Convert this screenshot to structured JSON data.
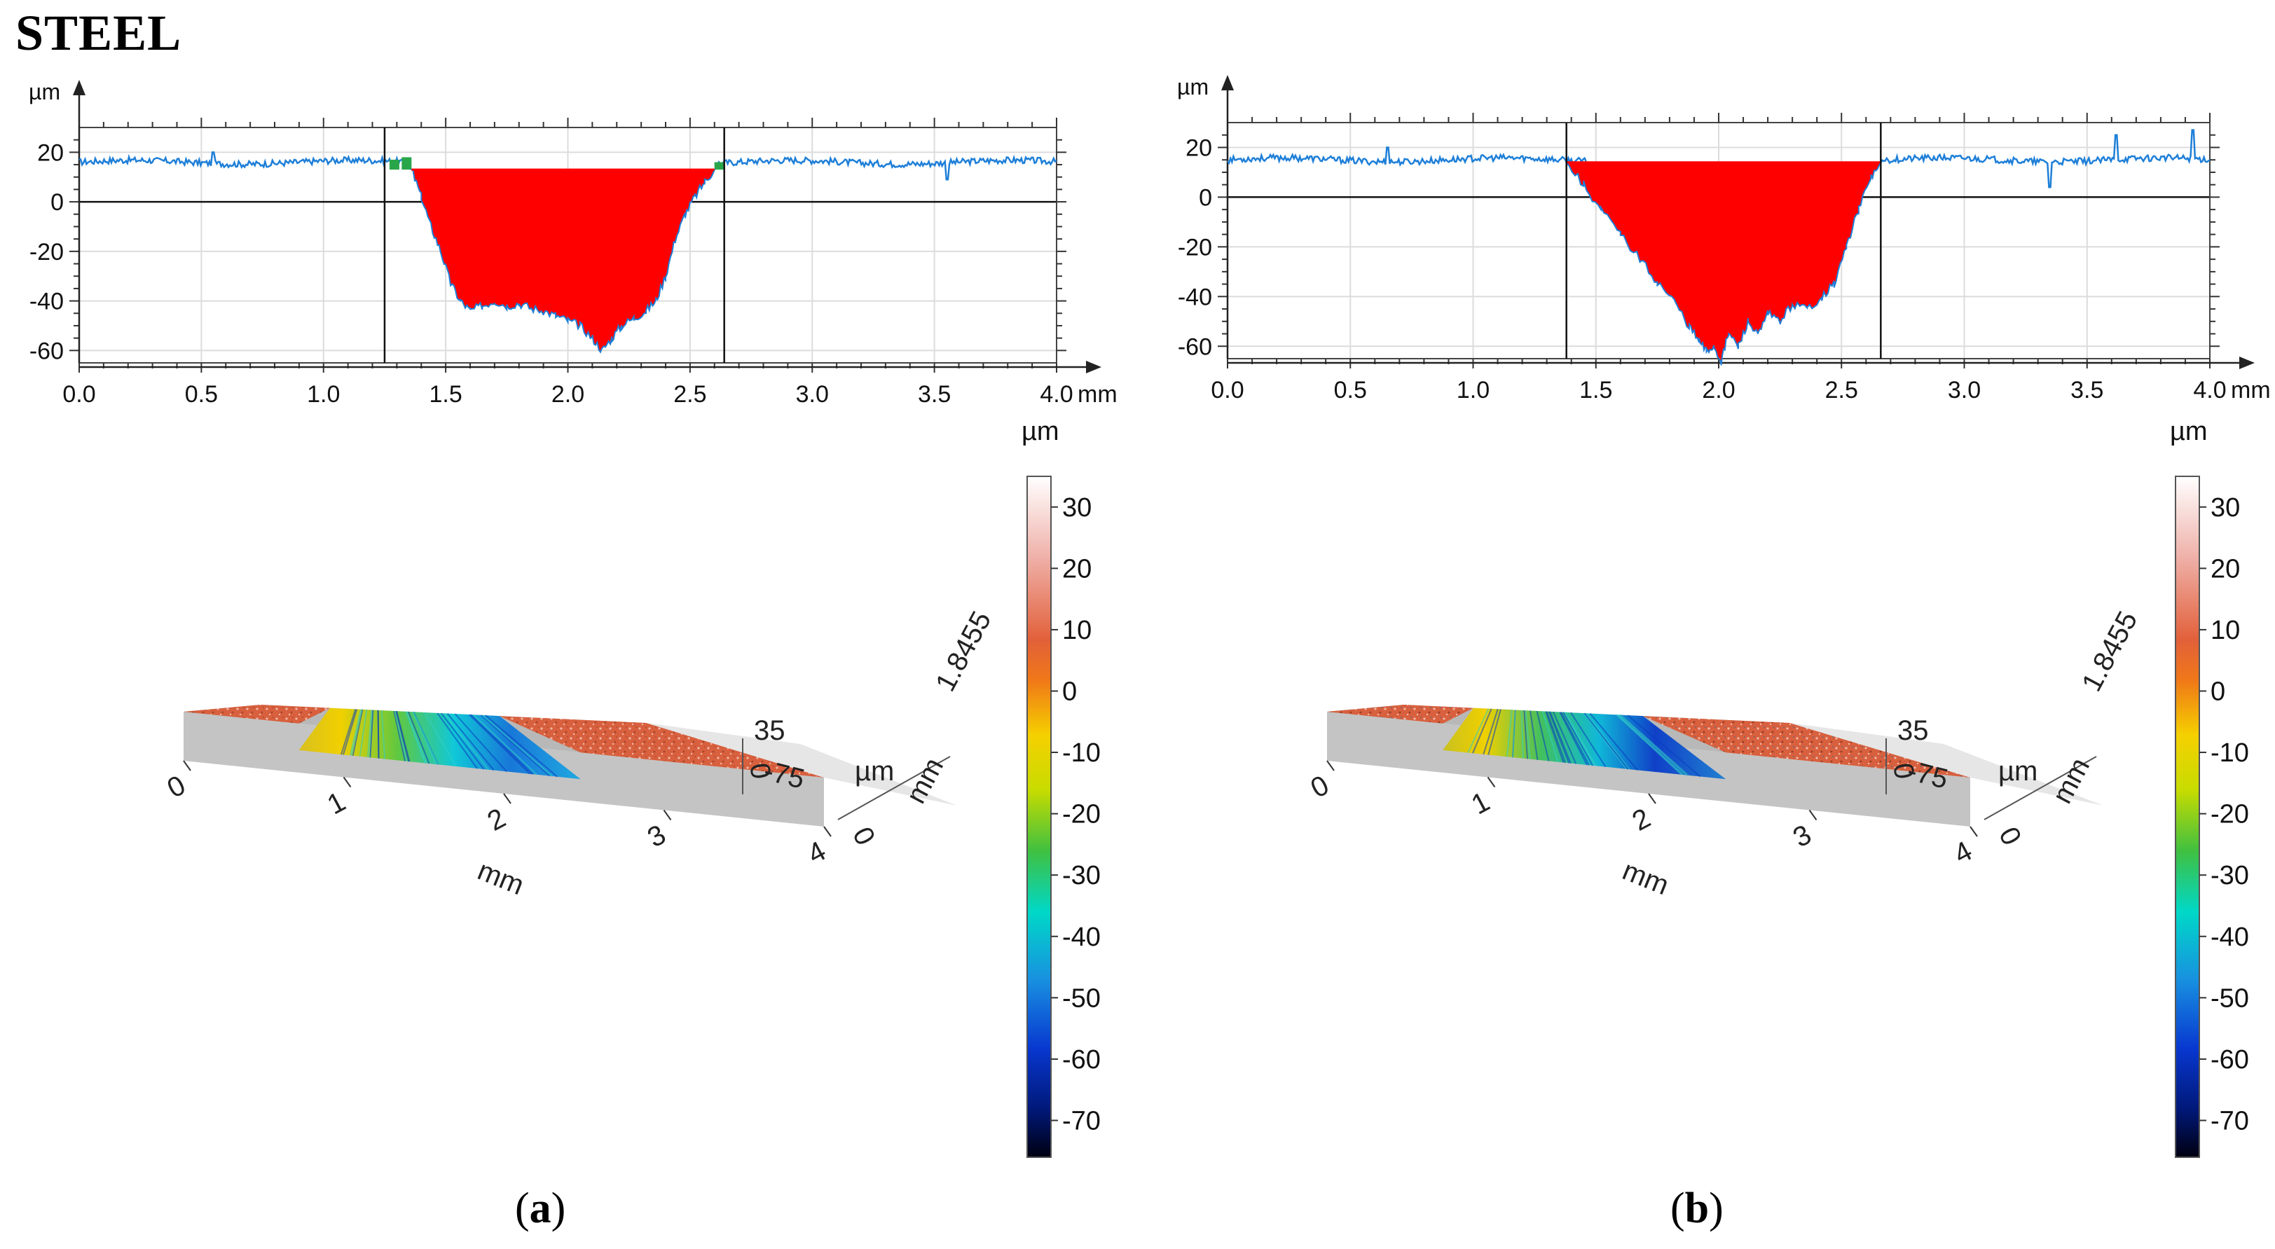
{
  "figure_title": "STEEL",
  "colors": {
    "profile_line": "#1e7fd8",
    "groove_fill": "#ff0000",
    "edge_fill": "#2aa64a",
    "surface_top": "#d9603e",
    "grid": "#dcdcdc"
  },
  "chart_data": [
    {
      "panel": "a",
      "caption_label": "a",
      "profile": {
        "type": "area",
        "x_unit": "mm",
        "y_unit": "µm",
        "xlim": [
          0.0,
          4.0
        ],
        "ylim": [
          -65,
          30
        ],
        "x_ticks": [
          "0.0",
          "0.5",
          "1.0",
          "1.5",
          "2.0",
          "2.5",
          "3.0",
          "3.5",
          "4.0"
        ],
        "y_ticks": [
          "20",
          "0",
          "-20",
          "-40",
          "-60"
        ],
        "baseline_level": 16,
        "cut_level": 13,
        "markers_x": [
          1.25,
          2.64
        ],
        "groove_x": [
          1.36,
          1.4,
          1.44,
          1.48,
          1.52,
          1.56,
          1.6,
          1.65,
          1.7,
          1.75,
          1.8,
          1.85,
          1.9,
          1.95,
          2.0,
          2.05,
          2.1,
          2.14,
          2.18,
          2.22,
          2.27,
          2.32,
          2.36,
          2.4,
          2.44,
          2.48,
          2.52,
          2.56,
          2.6
        ],
        "groove_y": [
          13,
          2,
          -10,
          -20,
          -33,
          -40,
          -44,
          -42,
          -40,
          -42,
          -41,
          -43,
          -44,
          -46,
          -48,
          -50,
          -55,
          -60,
          -55,
          -50,
          -47,
          -44,
          -40,
          -30,
          -15,
          -5,
          2,
          8,
          13
        ],
        "edge_bumps_x": [
          1.27,
          1.32,
          2.6
        ],
        "edge_bumps_height": [
          4,
          5,
          3
        ],
        "spikes_x": [
          0.55,
          3.55
        ],
        "spikes_depth": [
          4,
          -7
        ]
      },
      "colorbar": {
        "unit": "µm",
        "ticks": [
          "30",
          "20",
          "10",
          "0",
          "-10",
          "-20",
          "-30",
          "-40",
          "-50",
          "-60",
          "-70"
        ],
        "range": [
          -76,
          35
        ]
      },
      "surface3d": {
        "x_label": "mm",
        "y_label": "mm",
        "z_label": "µm",
        "x_ticks": [
          "0",
          "1",
          "2",
          "3",
          "4"
        ],
        "y_ticks": [
          "0",
          "1.8455"
        ],
        "z_ticks": [
          "35",
          "0",
          "-75"
        ]
      }
    },
    {
      "panel": "b",
      "caption_label": "b",
      "profile": {
        "type": "area",
        "x_unit": "mm",
        "y_unit": "µm",
        "xlim": [
          0.0,
          4.0
        ],
        "ylim": [
          -65,
          30
        ],
        "x_ticks": [
          "0.0",
          "0.5",
          "1.0",
          "1.5",
          "2.0",
          "2.5",
          "3.0",
          "3.5",
          "4.0"
        ],
        "y_ticks": [
          "20",
          "0",
          "-20",
          "-40",
          "-60"
        ],
        "baseline_level": 15,
        "cut_level": 14,
        "markers_x": [
          1.38,
          2.66
        ],
        "groove_x": [
          1.38,
          1.45,
          1.52,
          1.6,
          1.68,
          1.75,
          1.82,
          1.88,
          1.92,
          1.95,
          1.98,
          2.01,
          2.04,
          2.08,
          2.12,
          2.16,
          2.2,
          2.25,
          2.3,
          2.36,
          2.42,
          2.47,
          2.52,
          2.57,
          2.62,
          2.66
        ],
        "groove_y": [
          14,
          5,
          -5,
          -15,
          -25,
          -34,
          -42,
          -52,
          -58,
          -62,
          -60,
          -66,
          -55,
          -60,
          -50,
          -56,
          -47,
          -50,
          -43,
          -45,
          -40,
          -35,
          -20,
          -5,
          8,
          14
        ],
        "edge_bumps_x": [],
        "edge_bumps_height": [],
        "spikes_x": [
          0.65,
          1.8,
          3.35,
          3.62,
          3.93
        ],
        "spikes_depth": [
          5,
          4,
          -11,
          10,
          12
        ]
      },
      "colorbar": {
        "unit": "µm",
        "ticks": [
          "30",
          "20",
          "10",
          "0",
          "-10",
          "-20",
          "-30",
          "-40",
          "-50",
          "-60",
          "-70"
        ],
        "range": [
          -76,
          35
        ]
      },
      "surface3d": {
        "x_label": "mm",
        "y_label": "mm",
        "z_label": "µm",
        "x_ticks": [
          "0",
          "1",
          "2",
          "3",
          "4"
        ],
        "y_ticks": [
          "0",
          "1.8455"
        ],
        "z_ticks": [
          "35",
          "0",
          "-75"
        ]
      }
    }
  ]
}
